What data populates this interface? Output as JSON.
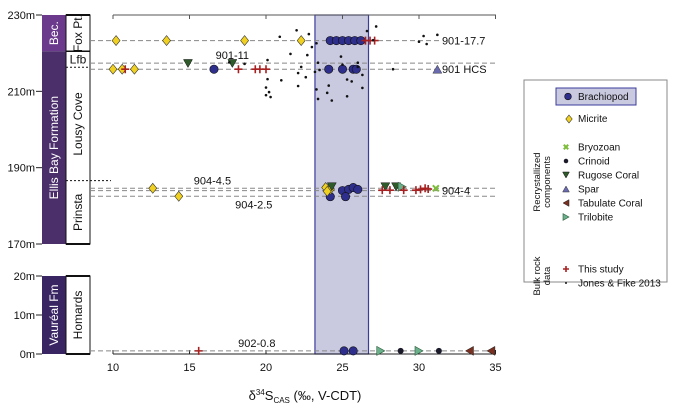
{
  "chart_data": {
    "type": "scatter",
    "title": "",
    "xlabel": {
      "delta": "δ",
      "sup": "34",
      "S": "S",
      "sub": "CAS",
      "rest": " (‰, V-CDT)"
    },
    "xlim": [
      10,
      35
    ],
    "x_ticks": [
      "10",
      "15",
      "20",
      "25",
      "30",
      "35"
    ],
    "x_tick_values": [
      10,
      15,
      20,
      25,
      30,
      35
    ],
    "shaded_band": {
      "x_from": 23.2,
      "x_to": 26.7,
      "label": "Brachiopod range",
      "color": "#c9c9e0",
      "edge": "#3b3b9c"
    },
    "panels": [
      {
        "name": "upper",
        "ylim": [
          170,
          230
        ],
        "y_ticks": [
          "170m",
          "190m",
          "210m",
          "230m"
        ],
        "y_tick_values": [
          170,
          190,
          210,
          230
        ],
        "formations": [
          {
            "label": "Bec.",
            "from": 220.5,
            "to": 230,
            "color": "#6b3a8c"
          },
          {
            "label": "Ellis Bay Formation",
            "from": 170,
            "to": 220.5,
            "color": "#4b2f6b"
          }
        ],
        "members": [
          {
            "label": "Fox Pt.",
            "from": 220.5,
            "to": 230
          },
          {
            "label": "Lfb",
            "from": 216.3,
            "to": 220.5
          },
          {
            "label": "Lousy Cove",
            "from": 186.6,
            "to": 216.3
          },
          {
            "label": "Prinsta",
            "from": 170,
            "to": 186.6
          }
        ],
        "levels": [
          {
            "label": "901-17.7",
            "y": 223.3,
            "label_x": 31.5,
            "side": "right"
          },
          {
            "label": "",
            "y": 217.4,
            "side": "none"
          },
          {
            "label": "901 HCS",
            "y": 215.8,
            "label_x": 31.5,
            "side": "right"
          },
          {
            "label": "904-4.5",
            "y": 184.6,
            "label_x": 16.5,
            "side": "above"
          },
          {
            "label": "904-4",
            "y": 184.0,
            "label_x": 31.5,
            "side": "right"
          },
          {
            "label": "904-2.5",
            "y": 182.5,
            "label_x": 19.2,
            "side": "below"
          }
        ],
        "annotations": [
          {
            "text": "901-11",
            "x": 17.8,
            "y": 218.5
          }
        ],
        "series": [
          {
            "name": "Brachiopod",
            "marker": "circle",
            "color": "#2e2e8c",
            "points": [
              [
                16.6,
                215.8
              ],
              [
                24.2,
                223.3
              ],
              [
                24.6,
                223.3
              ],
              [
                25.0,
                223.3
              ],
              [
                25.4,
                223.3
              ],
              [
                25.8,
                223.3
              ],
              [
                26.2,
                223.3
              ],
              [
                24.1,
                215.8
              ],
              [
                25.0,
                215.8
              ],
              [
                25.7,
                215.8
              ],
              [
                25.9,
                215.8
              ],
              [
                24.2,
                182.4
              ],
              [
                25.0,
                184.0
              ],
              [
                25.4,
                184.3
              ],
              [
                25.7,
                184.8
              ],
              [
                26.0,
                184.3
              ],
              [
                25.2,
                182.4
              ]
            ]
          },
          {
            "name": "Micrite",
            "marker": "diamond",
            "color": "#f0d020",
            "points": [
              [
                10.2,
                223.3
              ],
              [
                13.5,
                223.3
              ],
              [
                18.6,
                223.3
              ],
              [
                22.3,
                223.3
              ],
              [
                10.0,
                215.8
              ],
              [
                10.6,
                215.8
              ],
              [
                11.4,
                215.8
              ],
              [
                12.6,
                184.6
              ],
              [
                14.3,
                182.5
              ],
              [
                23.9,
                184.8
              ],
              [
                24.2,
                184.3
              ],
              [
                24.0,
                183.8
              ]
            ]
          },
          {
            "name": "Bryozoan",
            "marker": "x",
            "color": "#7cbc3a",
            "points": [
              [
                31.1,
                184.6
              ]
            ]
          },
          {
            "name": "Rugose Coral",
            "marker": "triangle-down",
            "color": "#2f5a2a",
            "points": [
              [
                14.9,
                217.3
              ],
              [
                17.8,
                217.3
              ],
              [
                24.3,
                185.0
              ],
              [
                27.8,
                185.0
              ],
              [
                28.5,
                185.0
              ]
            ]
          },
          {
            "name": "Spar",
            "marker": "triangle-up",
            "color": "#6a6ab0",
            "points": [
              [
                31.2,
                215.8
              ]
            ]
          },
          {
            "name": "Trilobite",
            "marker": "triangle-right",
            "color": "#6ab08a",
            "points": [
              [
                28.9,
                185.0
              ]
            ]
          },
          {
            "name": "This study",
            "marker": "plus",
            "color": "#a82020",
            "points": [
              [
                10.8,
                215.8
              ],
              [
                18.2,
                215.8
              ],
              [
                19.3,
                215.8
              ],
              [
                19.6,
                215.8
              ],
              [
                20.0,
                215.8
              ],
              [
                26.5,
                223.3
              ],
              [
                26.8,
                223.3
              ],
              [
                27.1,
                223.3
              ],
              [
                27.6,
                184.1
              ],
              [
                28.1,
                184.1
              ],
              [
                29.0,
                184.1
              ],
              [
                29.8,
                184.1
              ],
              [
                30.1,
                184.3
              ],
              [
                30.4,
                184.6
              ],
              [
                30.6,
                184.4
              ]
            ]
          },
          {
            "name": "Jones & Fike 2013",
            "marker": "dot",
            "color": "#111111",
            "points": [
              [
                20.9,
                224.3
              ],
              [
                22.0,
                226.0
              ],
              [
                22.8,
                225.0
              ],
              [
                26.6,
                225.8
              ],
              [
                27.2,
                227.0
              ],
              [
                27.0,
                223.4
              ],
              [
                30.0,
                223.0
              ],
              [
                30.3,
                224.5
              ],
              [
                30.5,
                222.4
              ],
              [
                31.2,
                224.8
              ],
              [
                21.6,
                219.8
              ],
              [
                22.7,
                219.5
              ],
              [
                23.0,
                221.6
              ],
              [
                23.3,
                222.6
              ],
              [
                23.4,
                217.5
              ],
              [
                24.9,
                219.1
              ],
              [
                25.0,
                217.0
              ],
              [
                26.0,
                217.5
              ],
              [
                28.3,
                215.8
              ],
              [
                20.1,
                218.2
              ],
              [
                18.6,
                217.2
              ],
              [
                22.1,
                214.8
              ],
              [
                20.1,
                213.2
              ],
              [
                21.0,
                212.9
              ],
              [
                22.1,
                211.4
              ],
              [
                23.3,
                210.5
              ],
              [
                24.0,
                209.6
              ],
              [
                23.4,
                208.0
              ],
              [
                24.3,
                207.6
              ],
              [
                22.6,
                213.7
              ],
              [
                23.2,
                215.1
              ],
              [
                23.5,
                215.6
              ],
              [
                26.3,
                214.3
              ],
              [
                25.6,
                212.6
              ],
              [
                26.3,
                210.9
              ],
              [
                25.3,
                208.7
              ],
              [
                24.1,
                211.5
              ],
              [
                25.3,
                213.1
              ],
              [
                26.0,
                216.4
              ],
              [
                22.3,
                216.4
              ],
              [
                20.0,
                211.0
              ],
              [
                20.2,
                209.8
              ],
              [
                20.0,
                209.0
              ],
              [
                20.3,
                208.5
              ],
              [
                17.6,
                217.6
              ]
            ]
          }
        ]
      },
      {
        "name": "lower",
        "ylim": [
          0,
          20
        ],
        "y_ticks": [
          "0m",
          "10m",
          "20m"
        ],
        "y_tick_values": [
          0,
          10,
          20
        ],
        "formations": [
          {
            "label": "Vauréal Fm",
            "from": 0,
            "to": 20,
            "color": "#3a2563"
          }
        ],
        "members": [
          {
            "label": "Homards",
            "from": 0,
            "to": 20
          }
        ],
        "levels": [
          {
            "label": "902-0.8",
            "y": 0.8,
            "label_x": 19.4,
            "side": "above"
          }
        ],
        "series": [
          {
            "name": "Brachiopod",
            "marker": "circle",
            "color": "#2e2e8c",
            "points": [
              [
                25.1,
                0.8
              ],
              [
                25.7,
                0.8
              ]
            ]
          },
          {
            "name": "This study",
            "marker": "plus",
            "color": "#a82020",
            "points": [
              [
                15.6,
                0.8
              ]
            ]
          },
          {
            "name": "Trilobite",
            "marker": "triangle-right",
            "color": "#6ab08a",
            "points": [
              [
                27.5,
                0.8
              ],
              [
                30.0,
                0.8
              ]
            ]
          },
          {
            "name": "Crinoid",
            "marker": "crinoid",
            "color": "#1a1a2a",
            "points": [
              [
                28.8,
                0.8
              ],
              [
                31.3,
                0.8
              ]
            ]
          },
          {
            "name": "Tabulate Coral",
            "marker": "triangle-left",
            "color": "#7a3020",
            "points": [
              [
                33.3,
                0.8
              ],
              [
                34.7,
                0.8
              ]
            ]
          }
        ]
      }
    ],
    "legend": {
      "position": "right",
      "highlight": {
        "name": "Brachiopod",
        "marker": "circle",
        "color": "#2e2e8c"
      },
      "main": [
        {
          "name": "Micrite",
          "marker": "diamond",
          "color": "#f0d020"
        }
      ],
      "groups": [
        {
          "title_lines": [
            "Recrystallized",
            "components"
          ],
          "items": [
            {
              "name": "Bryozoan",
              "marker": "x",
              "color": "#7cbc3a"
            },
            {
              "name": "Crinoid",
              "marker": "crinoid",
              "color": "#1a1a2a"
            },
            {
              "name": "Rugose Coral",
              "marker": "triangle-down",
              "color": "#2f5a2a"
            },
            {
              "name": "Spar",
              "marker": "triangle-up",
              "color": "#6a6ab0"
            },
            {
              "name": "Tabulate Coral",
              "marker": "triangle-left",
              "color": "#7a3020"
            },
            {
              "name": "Trilobite",
              "marker": "triangle-right",
              "color": "#6ab08a"
            }
          ]
        },
        {
          "title_lines": [
            "Bulk rock",
            "data"
          ],
          "items": [
            {
              "name": "This study",
              "marker": "plus",
              "color": "#a82020"
            },
            {
              "name": "Jones & Fike 2013",
              "marker": "dot",
              "color": "#111111"
            }
          ]
        }
      ]
    }
  }
}
